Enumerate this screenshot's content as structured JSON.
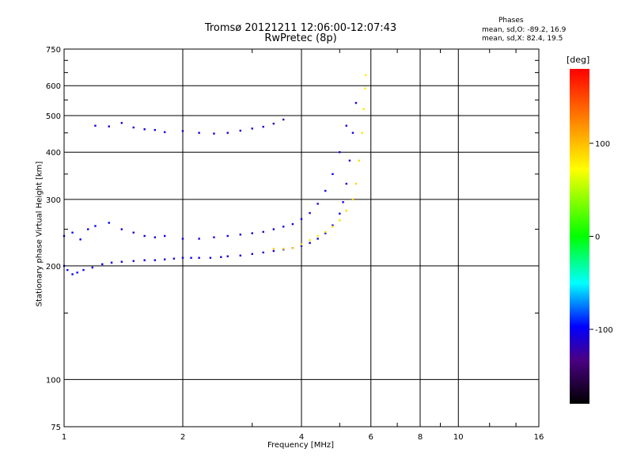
{
  "chart_data": {
    "type": "scatter",
    "title": "Tromsø 20121211 12:06:00-12:07:43",
    "subtitle": "RwPretec (8p)",
    "xlabel": "Frequency [MHz]",
    "ylabel": "Stationary phase Virtual Height [km]",
    "x_scale": "log",
    "y_scale": "log",
    "xlim": [
      1,
      16
    ],
    "ylim": [
      75,
      750
    ],
    "x_ticks": [
      1,
      2,
      4,
      6,
      8,
      10,
      16
    ],
    "y_ticks": [
      75,
      100,
      200,
      300,
      400,
      500,
      600,
      750
    ],
    "x_tick_labels": [
      "1",
      "2",
      "4",
      "6",
      "8",
      "10",
      "16"
    ],
    "y_tick_labels": [
      "75",
      "100",
      "200",
      "300",
      "400",
      "500",
      "600",
      "750"
    ],
    "grid": true,
    "colorbar": {
      "label": "[deg]",
      "ticks": [
        100,
        0,
        -100
      ],
      "tick_labels": [
        "100",
        "0",
        "-100"
      ],
      "range": [
        -180,
        180
      ]
    },
    "stats": {
      "heading": "Phases",
      "o_line": "mean, sd,O: -89.2, 16.9",
      "x_line": "mean, sd,X:  82.4, 19.5"
    },
    "series": [
      {
        "x": [
          1.0,
          1.02,
          1.05,
          1.08,
          1.12,
          1.18,
          1.25,
          1.32,
          1.4,
          1.5,
          1.6,
          1.7,
          1.8,
          1.9,
          2.0,
          2.1,
          2.2,
          2.35,
          2.5,
          2.6,
          2.8,
          3.0,
          3.2,
          3.4,
          3.6,
          3.8,
          4.0,
          4.2,
          4.4,
          4.6,
          4.8,
          5.0,
          5.1,
          5.2,
          5.3,
          5.4,
          5.5
        ],
        "y": [
          200,
          195,
          190,
          192,
          195,
          198,
          202,
          204,
          205,
          206,
          207,
          207,
          208,
          209,
          210,
          210,
          210,
          210,
          211,
          212,
          213,
          215,
          217,
          219,
          221,
          223,
          226,
          230,
          236,
          244,
          256,
          275,
          295,
          330,
          380,
          450,
          540
        ],
        "phase": [
          -95,
          -92,
          -90,
          -92,
          -95,
          -100,
          -98,
          -96,
          -100,
          -102,
          -98,
          -100,
          -105,
          -100,
          -98,
          -96,
          -100,
          -102,
          -98,
          -100,
          -105,
          -108,
          -110,
          -105,
          -100,
          -98,
          -100,
          -102,
          -100,
          -98,
          -100,
          -95,
          -98,
          -100,
          -102,
          -100,
          -98
        ]
      },
      {
        "x": [
          1.0,
          1.05,
          1.1,
          1.15,
          1.2,
          1.3,
          1.4,
          1.5,
          1.6,
          1.7,
          1.8,
          2.0,
          2.2,
          2.4,
          2.6,
          2.8,
          3.0,
          3.2,
          3.4,
          3.6,
          3.8,
          4.0,
          4.2,
          4.4,
          4.6,
          4.8,
          5.0,
          5.2
        ],
        "y": [
          240,
          245,
          235,
          250,
          255,
          260,
          250,
          245,
          240,
          238,
          240,
          236,
          236,
          238,
          240,
          242,
          244,
          246,
          250,
          254,
          258,
          266,
          276,
          292,
          316,
          350,
          400,
          470
        ],
        "phase": [
          -90,
          -88,
          -92,
          -95,
          -94,
          -96,
          -98,
          -100,
          -102,
          -100,
          -98,
          -100,
          -102,
          -100,
          -98,
          -96,
          -100,
          -102,
          -100,
          -98,
          -100,
          -102,
          -104,
          -100,
          -98,
          -96,
          -100,
          -102
        ]
      },
      {
        "x": [
          1.2,
          1.3,
          1.4,
          1.5,
          1.6,
          1.7,
          1.8,
          2.0,
          2.2,
          2.4,
          2.6,
          2.8,
          3.0,
          3.2,
          3.4,
          3.6
        ],
        "y": [
          470,
          468,
          478,
          465,
          460,
          458,
          452,
          455,
          450,
          448,
          450,
          456,
          462,
          467,
          476,
          488
        ],
        "phase": [
          -98,
          -100,
          -102,
          -100,
          -98,
          -100,
          -102,
          -104,
          -100,
          -98,
          -100,
          -102,
          -104,
          -108,
          -112,
          -115
        ]
      },
      {
        "x": [
          3.4,
          3.6,
          3.8,
          4.0,
          4.2,
          4.4,
          4.6,
          4.8,
          5.0,
          5.2,
          5.4,
          5.5,
          5.6,
          5.7,
          5.75,
          5.8,
          5.82
        ],
        "y": [
          222,
          222,
          223,
          228,
          234,
          240,
          246,
          254,
          264,
          280,
          300,
          330,
          380,
          450,
          520,
          590,
          640
        ],
        "phase": [
          90,
          92,
          94,
          88,
          80,
          78,
          82,
          84,
          86,
          88,
          90,
          88,
          85,
          82,
          80,
          78,
          76
        ]
      }
    ]
  }
}
